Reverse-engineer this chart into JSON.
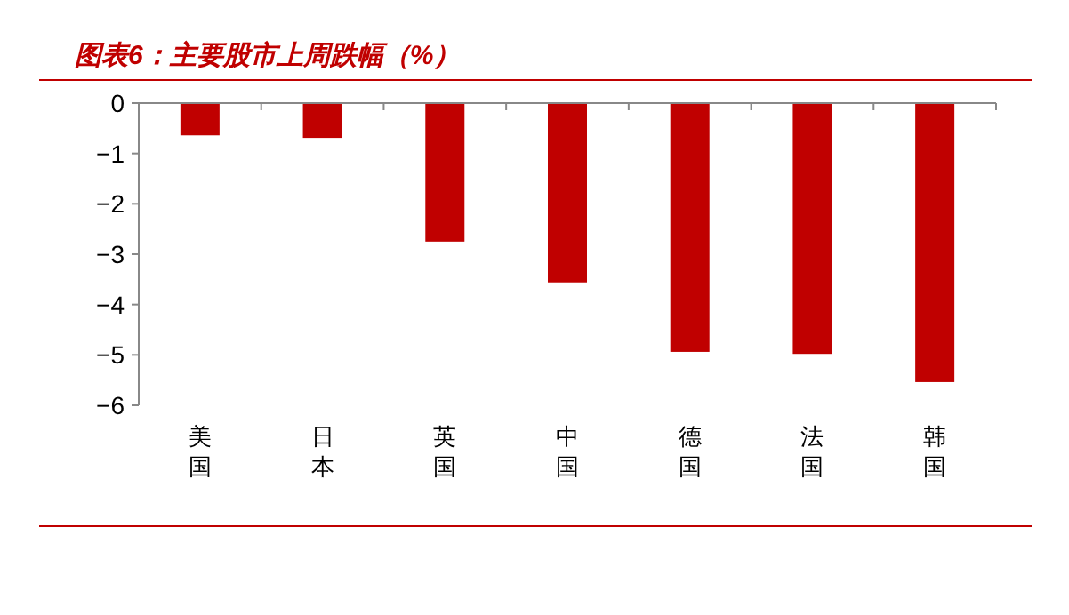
{
  "chart_data": {
    "type": "bar",
    "title": "图表6：主要股市上周跌幅（%）",
    "categories": [
      "美国",
      "日本",
      "英国",
      "中国",
      "德国",
      "法国",
      "韩国"
    ],
    "values": [
      -0.64,
      -0.69,
      -2.75,
      -3.56,
      -4.94,
      -4.98,
      -5.54
    ],
    "color": "#c00000",
    "ylim": [
      -6,
      0
    ],
    "yticks": [
      -6,
      -5,
      -4,
      -3,
      -2,
      -1,
      0
    ],
    "grid": false
  }
}
